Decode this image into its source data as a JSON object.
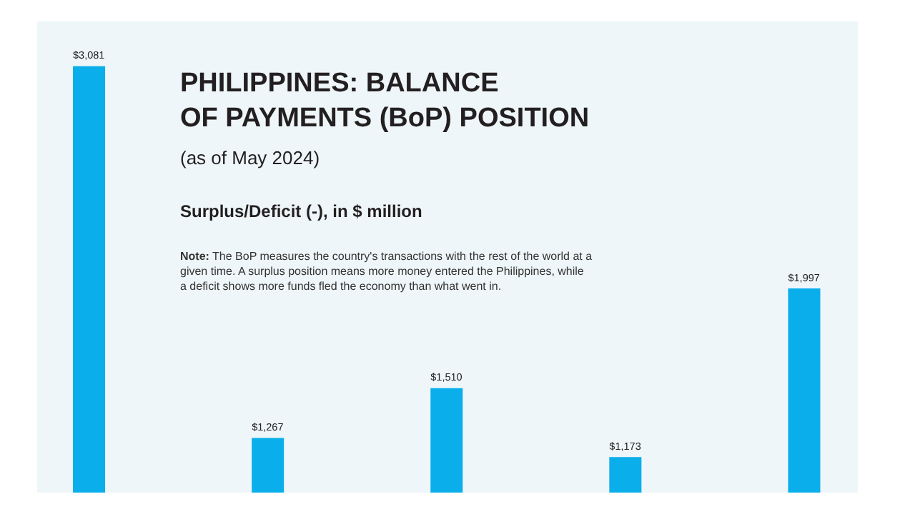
{
  "chart_data": {
    "type": "bar",
    "title": "PHILIPPINES: BALANCE\nOF PAYMENTS (BoP) POSITION",
    "subtitle": "(as of May 2024)",
    "ylabel": "Surplus/Deficit (-), in $ million",
    "annotations": [
      "Note: The BoP measures the country's transactions with the rest of the world at a\ngiven time. A surplus position means more money entered the Philippines, while\na deficit shows more funds fled the economy than what went in."
    ],
    "categories": [
      null,
      null,
      null,
      null,
      null
    ],
    "values": [
      3081,
      1267,
      1510,
      1173,
      1997
    ],
    "value_labels": [
      "$3,081",
      "$1,267",
      "$1,510",
      "$1,173",
      "$1,997"
    ],
    "color": "#0aaeea",
    "ylim": [
      1000,
      3300
    ],
    "tick_labels": false,
    "legend": false
  }
}
